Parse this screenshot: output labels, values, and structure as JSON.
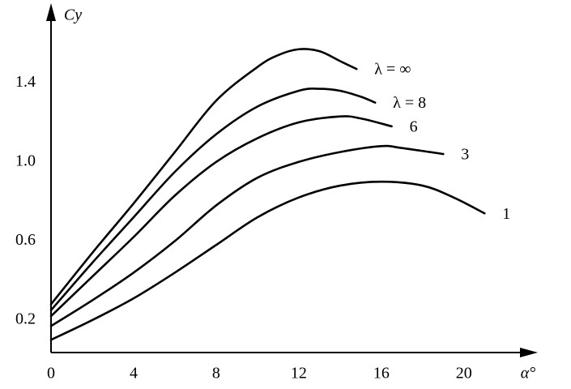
{
  "chart_data": {
    "type": "line",
    "x_label": "α°",
    "y_label": "Cy",
    "xlim": [
      0,
      23.5
    ],
    "ylim": [
      0.04,
      1.78
    ],
    "xticks": [
      0,
      4,
      8,
      12,
      16,
      20
    ],
    "yticks": [
      0.2,
      0.6,
      {
        "value": 1,
        "label": "1.0"
      },
      1.4
    ],
    "grid": false,
    "series": [
      {
        "name": "λ = ∞",
        "color": "#000000",
        "x": [
          0,
          2,
          4,
          6,
          8,
          10,
          11,
          12,
          13,
          14,
          14.8
        ],
        "values": [
          0.28,
          0.54,
          0.79,
          1.05,
          1.31,
          1.48,
          1.54,
          1.57,
          1.56,
          1.51,
          1.47
        ]
      },
      {
        "name": "λ = 8",
        "color": "#000000",
        "x": [
          0,
          2,
          4,
          6,
          8,
          10,
          12,
          13,
          14,
          15,
          15.7
        ],
        "values": [
          0.25,
          0.49,
          0.72,
          0.95,
          1.14,
          1.28,
          1.36,
          1.37,
          1.36,
          1.33,
          1.3
        ]
      },
      {
        "name": "6",
        "color": "#000000",
        "x": [
          0,
          2,
          4,
          6,
          8,
          10,
          12,
          14,
          15,
          16.5
        ],
        "values": [
          0.22,
          0.42,
          0.62,
          0.83,
          1.0,
          1.12,
          1.2,
          1.23,
          1.22,
          1.18
        ]
      },
      {
        "name": "3",
        "color": "#000000",
        "x": [
          0,
          2,
          4,
          6,
          8,
          10,
          12,
          14,
          16,
          17,
          19
        ],
        "values": [
          0.17,
          0.3,
          0.44,
          0.6,
          0.78,
          0.92,
          1.0,
          1.05,
          1.08,
          1.07,
          1.04
        ]
      },
      {
        "name": "1",
        "color": "#000000",
        "x": [
          0,
          2,
          4,
          6,
          8,
          10,
          12,
          14,
          16,
          18,
          19.5,
          21
        ],
        "values": [
          0.1,
          0.2,
          0.31,
          0.44,
          0.58,
          0.72,
          0.82,
          0.88,
          0.9,
          0.88,
          0.82,
          0.74
        ]
      }
    ]
  }
}
